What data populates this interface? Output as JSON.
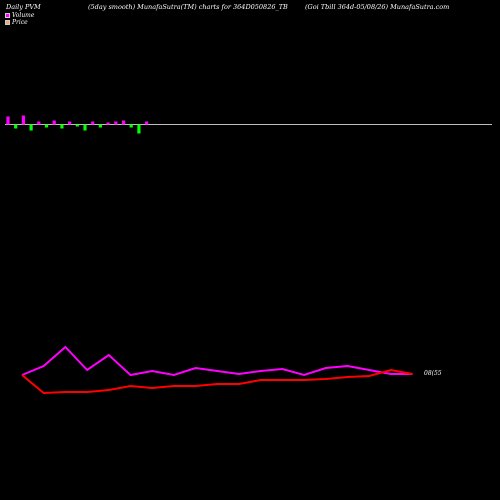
{
  "header": {
    "left": "Daily PVM",
    "middle": "(5day smooth) MunafaSutra(TM) charts for 364D050826_TB",
    "right": "(Goi  Tbill 364d-05/08/26) MunafaSutra.com"
  },
  "legend": [
    {
      "label": "Volume",
      "color": "#ff00ff"
    },
    {
      "label": "Price",
      "color": "#ffa07a"
    }
  ],
  "colors": {
    "volume_up": "#ff00ff",
    "volume_down": "#00ff00",
    "pvm_line": "#ff00ff",
    "price_line": "#ff0000",
    "baseline": "#ffffff"
  },
  "chart_data": {
    "type": "line",
    "end_label": "08(55",
    "volume_bars": [
      {
        "value": 8,
        "dir": "up"
      },
      {
        "value": -4,
        "dir": "down"
      },
      {
        "value": 9,
        "dir": "up"
      },
      {
        "value": -6,
        "dir": "down"
      },
      {
        "value": 3,
        "dir": "up"
      },
      {
        "value": -3,
        "dir": "down"
      },
      {
        "value": 4,
        "dir": "up"
      },
      {
        "value": -4,
        "dir": "down"
      },
      {
        "value": 3,
        "dir": "up"
      },
      {
        "value": -2,
        "dir": "down"
      },
      {
        "value": -6,
        "dir": "down"
      },
      {
        "value": 3,
        "dir": "up"
      },
      {
        "value": -3,
        "dir": "down"
      },
      {
        "value": 2,
        "dir": "up"
      },
      {
        "value": 3,
        "dir": "up"
      },
      {
        "value": 4,
        "dir": "up"
      },
      {
        "value": -3,
        "dir": "down"
      },
      {
        "value": -9,
        "dir": "down"
      },
      {
        "value": 3,
        "dir": "up"
      }
    ],
    "series": [
      {
        "values": [
          375,
          366,
          347,
          370,
          355,
          375,
          371,
          375,
          368,
          371,
          374,
          371,
          369,
          375,
          368,
          366,
          370,
          374,
          374
        ]
      },
      {
        "values": [
          375,
          393,
          392,
          392,
          390,
          386,
          388,
          386,
          386,
          384,
          384,
          380,
          380,
          380,
          379,
          377,
          376,
          370,
          374
        ]
      }
    ]
  }
}
